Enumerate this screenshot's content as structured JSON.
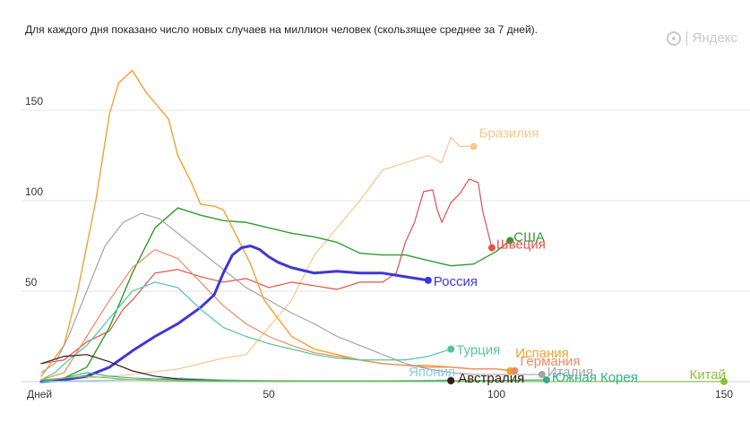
{
  "subtitle": "Для каждого дня показано число новых случаев на миллион человек (скользящее среднее за 7 дней).",
  "brand": {
    "label": "Яндекс"
  },
  "chart_data": {
    "type": "line",
    "x_axis": {
      "label": "Дней",
      "range": [
        0,
        150
      ],
      "ticks": [
        50,
        100,
        150
      ]
    },
    "y_axis": {
      "range": [
        0,
        155
      ],
      "ticks": [
        50,
        100,
        150
      ]
    },
    "grid": "horizontal",
    "series": [
      {
        "name": "Бразилия",
        "color": "#f7c78c",
        "width": 1.2,
        "points": [
          [
            0,
            1
          ],
          [
            10,
            2
          ],
          [
            20,
            4
          ],
          [
            30,
            7
          ],
          [
            40,
            13
          ],
          [
            45,
            15
          ],
          [
            50,
            30
          ],
          [
            55,
            45
          ],
          [
            60,
            70
          ],
          [
            65,
            85
          ],
          [
            70,
            100
          ],
          [
            75,
            117
          ],
          [
            80,
            121
          ],
          [
            85,
            125
          ],
          [
            88,
            121
          ],
          [
            90,
            135
          ],
          [
            92,
            130
          ],
          [
            95,
            130
          ]
        ]
      },
      {
        "name": "Швеция",
        "color": "#e0504d",
        "width": 1.2,
        "points": [
          [
            0,
            10
          ],
          [
            5,
            12
          ],
          [
            10,
            22
          ],
          [
            15,
            28
          ],
          [
            18,
            40
          ],
          [
            20,
            45
          ],
          [
            25,
            60
          ],
          [
            30,
            62
          ],
          [
            35,
            58
          ],
          [
            40,
            55
          ],
          [
            45,
            57
          ],
          [
            50,
            52
          ],
          [
            55,
            55
          ],
          [
            60,
            53
          ],
          [
            65,
            51
          ],
          [
            70,
            55
          ],
          [
            75,
            55
          ],
          [
            78,
            60
          ],
          [
            80,
            77
          ],
          [
            82,
            88
          ],
          [
            84,
            105
          ],
          [
            86,
            106
          ],
          [
            87,
            95
          ],
          [
            88,
            88
          ],
          [
            90,
            99
          ],
          [
            92,
            104
          ],
          [
            94,
            112
          ],
          [
            96,
            110
          ],
          [
            97,
            94
          ],
          [
            99,
            74
          ]
        ]
      },
      {
        "name": "США",
        "color": "#2f9b2a",
        "width": 1.4,
        "points": [
          [
            0,
            0
          ],
          [
            5,
            2
          ],
          [
            10,
            8
          ],
          [
            15,
            30
          ],
          [
            20,
            60
          ],
          [
            25,
            85
          ],
          [
            30,
            96
          ],
          [
            35,
            92
          ],
          [
            40,
            89
          ],
          [
            45,
            88
          ],
          [
            50,
            85
          ],
          [
            55,
            82
          ],
          [
            60,
            80
          ],
          [
            65,
            77
          ],
          [
            70,
            71
          ],
          [
            75,
            70
          ],
          [
            80,
            70
          ],
          [
            85,
            67
          ],
          [
            90,
            64
          ],
          [
            95,
            65
          ],
          [
            100,
            72
          ],
          [
            103,
            78
          ]
        ]
      },
      {
        "name": "Испания",
        "color": "#f5a02e",
        "width": 1.4,
        "points": [
          [
            0,
            3
          ],
          [
            5,
            20
          ],
          [
            8,
            50
          ],
          [
            12,
            100
          ],
          [
            15,
            148
          ],
          [
            17,
            165
          ],
          [
            20,
            172
          ],
          [
            23,
            160
          ],
          [
            28,
            145
          ],
          [
            30,
            125
          ],
          [
            33,
            110
          ],
          [
            35,
            98
          ],
          [
            38,
            97
          ],
          [
            40,
            95
          ],
          [
            43,
            80
          ],
          [
            46,
            65
          ],
          [
            49,
            45
          ],
          [
            52,
            35
          ],
          [
            55,
            25
          ],
          [
            60,
            18
          ],
          [
            65,
            15
          ],
          [
            70,
            12
          ],
          [
            75,
            10
          ],
          [
            80,
            9
          ],
          [
            85,
            9
          ],
          [
            90,
            8
          ],
          [
            95,
            7
          ],
          [
            100,
            7
          ],
          [
            103,
            6
          ]
        ]
      },
      {
        "name": "Германия",
        "color": "#ef8a5e",
        "width": 1.2,
        "points": [
          [
            0,
            1
          ],
          [
            5,
            5
          ],
          [
            10,
            25
          ],
          [
            15,
            45
          ],
          [
            20,
            63
          ],
          [
            25,
            73
          ],
          [
            30,
            68
          ],
          [
            35,
            55
          ],
          [
            40,
            42
          ],
          [
            45,
            32
          ],
          [
            50,
            25
          ],
          [
            55,
            20
          ],
          [
            60,
            16
          ],
          [
            65,
            14
          ],
          [
            70,
            12
          ],
          [
            75,
            10
          ],
          [
            80,
            9
          ],
          [
            85,
            8
          ],
          [
            90,
            8
          ],
          [
            95,
            7
          ],
          [
            100,
            7
          ],
          [
            104,
            6
          ]
        ]
      },
      {
        "name": "Италия",
        "color": "#a4a4a4",
        "width": 1.2,
        "points": [
          [
            0,
            5
          ],
          [
            3,
            10
          ],
          [
            6,
            25
          ],
          [
            10,
            50
          ],
          [
            14,
            75
          ],
          [
            18,
            88
          ],
          [
            22,
            93
          ],
          [
            26,
            90
          ],
          [
            30,
            82
          ],
          [
            35,
            72
          ],
          [
            40,
            62
          ],
          [
            45,
            52
          ],
          [
            50,
            45
          ],
          [
            55,
            38
          ],
          [
            60,
            32
          ],
          [
            65,
            25
          ],
          [
            70,
            20
          ],
          [
            75,
            15
          ],
          [
            80,
            10
          ],
          [
            85,
            7
          ],
          [
            90,
            5
          ],
          [
            95,
            4
          ],
          [
            100,
            4
          ],
          [
            105,
            4
          ],
          [
            110,
            4
          ]
        ]
      },
      {
        "name": "Россия",
        "color": "#3d37d6",
        "width": 3,
        "points": [
          [
            0,
            0
          ],
          [
            5,
            1
          ],
          [
            10,
            3
          ],
          [
            15,
            8
          ],
          [
            20,
            17
          ],
          [
            25,
            25
          ],
          [
            30,
            32
          ],
          [
            35,
            41
          ],
          [
            38,
            48
          ],
          [
            40,
            60
          ],
          [
            42,
            70
          ],
          [
            44,
            74
          ],
          [
            46,
            75
          ],
          [
            48,
            73
          ],
          [
            50,
            69
          ],
          [
            52,
            66
          ],
          [
            55,
            63
          ],
          [
            60,
            60
          ],
          [
            65,
            61
          ],
          [
            70,
            60
          ],
          [
            75,
            60
          ],
          [
            80,
            58
          ],
          [
            85,
            56
          ]
        ]
      },
      {
        "name": "Турция",
        "color": "#4fc79a",
        "width": 1.2,
        "points": [
          [
            0,
            1
          ],
          [
            3,
            5
          ],
          [
            6,
            12
          ],
          [
            10,
            20
          ],
          [
            15,
            35
          ],
          [
            20,
            50
          ],
          [
            25,
            55
          ],
          [
            30,
            52
          ],
          [
            35,
            40
          ],
          [
            40,
            30
          ],
          [
            45,
            25
          ],
          [
            50,
            21
          ],
          [
            55,
            18
          ],
          [
            60,
            15
          ],
          [
            65,
            13
          ],
          [
            70,
            12
          ],
          [
            75,
            12
          ],
          [
            80,
            12
          ],
          [
            85,
            14
          ],
          [
            90,
            18
          ]
        ]
      },
      {
        "name": "Япония",
        "color": "#8ec5e8",
        "width": 1.2,
        "points": [
          [
            0,
            0
          ],
          [
            10,
            0.5
          ],
          [
            20,
            1
          ],
          [
            30,
            2
          ],
          [
            40,
            1
          ],
          [
            50,
            0.5
          ],
          [
            60,
            0.4
          ],
          [
            70,
            0.4
          ],
          [
            80,
            0.4
          ],
          [
            90,
            1
          ]
        ]
      },
      {
        "name": "Австралия",
        "color": "#3a1a16",
        "width": 1.2,
        "points": [
          [
            0,
            10
          ],
          [
            5,
            14
          ],
          [
            10,
            15
          ],
          [
            15,
            11
          ],
          [
            20,
            6
          ],
          [
            25,
            3
          ],
          [
            30,
            1.5
          ],
          [
            35,
            1
          ],
          [
            40,
            0.5
          ],
          [
            50,
            0.3
          ],
          [
            60,
            0.3
          ],
          [
            70,
            0.3
          ],
          [
            80,
            0.3
          ],
          [
            90,
            0.5
          ]
        ]
      },
      {
        "name": "Южная Корея",
        "color": "#2fb08a",
        "width": 1.2,
        "points": [
          [
            0,
            0
          ],
          [
            5,
            2
          ],
          [
            10,
            5
          ],
          [
            15,
            3
          ],
          [
            20,
            2
          ],
          [
            30,
            1
          ],
          [
            40,
            0.5
          ],
          [
            50,
            0.3
          ],
          [
            60,
            0.4
          ],
          [
            70,
            0.4
          ],
          [
            80,
            0.5
          ],
          [
            90,
            0.5
          ],
          [
            100,
            0.7
          ],
          [
            105,
            0.8
          ],
          [
            111,
            1
          ]
        ]
      },
      {
        "name": "Китай",
        "color": "#8dbf3a",
        "width": 1.2,
        "points": [
          [
            0,
            1
          ],
          [
            10,
            3
          ],
          [
            20,
            1
          ],
          [
            30,
            0.3
          ],
          [
            40,
            0.1
          ],
          [
            60,
            0.1
          ],
          [
            80,
            0.1
          ],
          [
            100,
            0.1
          ],
          [
            120,
            0.1
          ],
          [
            140,
            0.1
          ],
          [
            150,
            0.1
          ]
        ]
      }
    ]
  }
}
